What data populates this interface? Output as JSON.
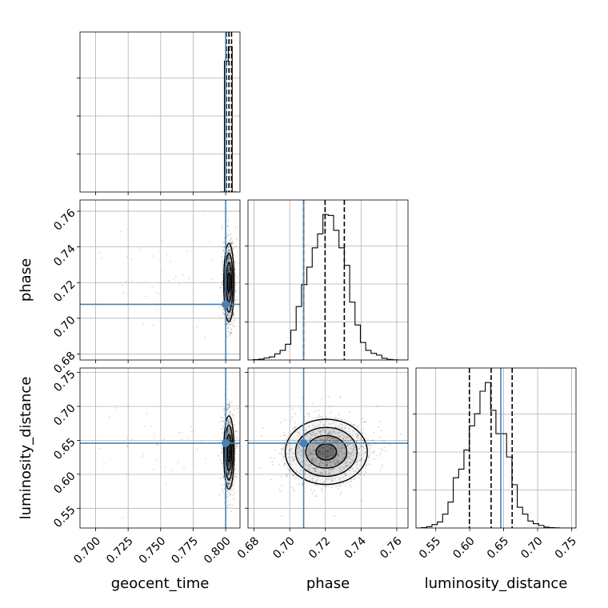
{
  "chart_data": {
    "type": "corner",
    "parameters": [
      "geocent_time",
      "phase",
      "luminosity_distance"
    ],
    "axis_labels": {
      "geocent_time": "geocent_time",
      "phase": "phase",
      "luminosity_distance": "luminosity_distance"
    },
    "ranges": {
      "geocent_time": [
        0.688,
        0.811
      ],
      "phase": [
        0.6766,
        0.7663
      ],
      "luminosity_distance": [
        0.5209,
        0.7565
      ]
    },
    "ticks": {
      "geocent_time": [
        0.7,
        0.725,
        0.75,
        0.775,
        0.8
      ],
      "phase": [
        0.68,
        0.7,
        0.72,
        0.74,
        0.76
      ],
      "luminosity_distance": [
        0.55,
        0.6,
        0.65,
        0.7,
        0.75
      ]
    },
    "tick_labels": {
      "geocent_time": [
        "0.700",
        "0.725",
        "0.750",
        "0.775",
        "0.800"
      ],
      "phase": [
        "0.68",
        "0.70",
        "0.72",
        "0.74",
        "0.76"
      ],
      "luminosity_distance": [
        "0.55",
        "0.60",
        "0.65",
        "0.70",
        "0.75"
      ]
    },
    "truths": {
      "geocent_time": 0.8,
      "phase": 0.7078,
      "luminosity_distance": 0.6458
    },
    "truth_color": "#4682b4",
    "quantiles": {
      "geocent_time": [
        0.8005,
        0.8025,
        0.8045
      ],
      "phase": [
        0.7078,
        0.7198,
        0.7306
      ],
      "luminosity_distance": [
        0.5995,
        0.6315,
        0.6625
      ]
    },
    "histograms": {
      "geocent_time": {
        "edges": [
          0.796,
          0.799,
          0.802,
          0.805,
          0.808
        ],
        "counts": [
          0.5,
          900,
          1000,
          0.5
        ]
      },
      "phase": {
        "edges": [
          0.6766,
          0.6796,
          0.6826,
          0.6856,
          0.6886,
          0.6916,
          0.6946,
          0.6976,
          0.7006,
          0.7036,
          0.7066,
          0.7096,
          0.7126,
          0.7156,
          0.7186,
          0.7216,
          0.7246,
          0.7276,
          0.7306,
          0.7336,
          0.7366,
          0.7396,
          0.7426,
          0.7456,
          0.7486,
          0.7516,
          0.7546,
          0.7576,
          0.7606,
          0.7636,
          0.7663
        ],
        "counts": [
          0,
          2,
          5,
          12,
          18,
          35,
          55,
          90,
          170,
          305,
          430,
          530,
          640,
          720,
          830,
          825,
          740,
          640,
          540,
          330,
          200,
          100,
          55,
          38,
          28,
          10,
          3,
          1,
          0,
          0
        ]
      },
      "luminosity_distance": {
        "edges": [
          0.5209,
          0.5287,
          0.5366,
          0.5444,
          0.5523,
          0.5601,
          0.568,
          0.5758,
          0.5837,
          0.5915,
          0.5994,
          0.6072,
          0.6151,
          0.6229,
          0.6308,
          0.6386,
          0.6465,
          0.6543,
          0.6622,
          0.67,
          0.6779,
          0.6857,
          0.6936,
          0.7014,
          0.7093,
          0.7171,
          0.725,
          0.7328,
          0.7407,
          0.7485,
          0.7565
        ],
        "counts": [
          0,
          2,
          8,
          20,
          35,
          80,
          150,
          290,
          340,
          450,
          590,
          660,
          790,
          840,
          680,
          545,
          545,
          410,
          250,
          120,
          80,
          40,
          25,
          15,
          5,
          2,
          1,
          0,
          0,
          0
        ]
      }
    },
    "joint_contours": {
      "phase_vs_geocent_time": {
        "center": [
          0.8025,
          0.72
        ],
        "sigma": [
          0.002,
          0.011
        ],
        "levels": [
          0.5,
          1.0,
          1.5,
          2.0
        ]
      },
      "luminosity_distance_vs_geocent_time": {
        "center": [
          0.8025,
          0.632
        ],
        "sigma": [
          0.002,
          0.027
        ],
        "levels": [
          0.5,
          1.0,
          1.5,
          2.0
        ]
      },
      "luminosity_distance_vs_phase": {
        "center": [
          0.7205,
          0.633
        ],
        "sigma": [
          0.0115,
          0.024
        ],
        "levels": [
          0.5,
          1.0,
          1.5,
          2.0
        ]
      }
    }
  }
}
